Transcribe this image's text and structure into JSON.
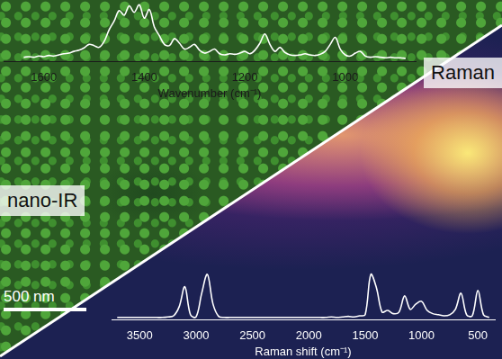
{
  "chart_data": [
    {
      "type": "line",
      "xlabel": "Wavenumber (cm⁻¹)",
      "annotations": [
        "nano-IR",
        "500 nm"
      ],
      "x": [
        1640,
        1630,
        1620,
        1610,
        1600,
        1590,
        1580,
        1570,
        1560,
        1550,
        1540,
        1530,
        1520,
        1510,
        1500,
        1490,
        1480,
        1470,
        1460,
        1450,
        1440,
        1430,
        1420,
        1410,
        1400,
        1390,
        1380,
        1370,
        1360,
        1350,
        1340,
        1330,
        1320,
        1310,
        1300,
        1290,
        1280,
        1270,
        1260,
        1250,
        1240,
        1230,
        1220,
        1210,
        1200,
        1190,
        1180,
        1170,
        1160,
        1150,
        1140,
        1130,
        1120,
        1110,
        1100,
        1090,
        1080,
        1070,
        1060,
        1050,
        1040,
        1030,
        1020,
        1010,
        1000,
        990,
        980,
        970,
        960,
        950,
        940,
        930,
        920,
        910,
        900,
        890,
        880
      ],
      "values": [
        8,
        9,
        8,
        10,
        9,
        11,
        10,
        12,
        14,
        15,
        18,
        20,
        24,
        30,
        28,
        25,
        35,
        55,
        70,
        88,
        80,
        96,
        85,
        98,
        75,
        90,
        60,
        45,
        30,
        28,
        40,
        32,
        22,
        25,
        30,
        20,
        15,
        18,
        22,
        14,
        12,
        14,
        13,
        15,
        18,
        14,
        20,
        32,
        48,
        30,
        18,
        25,
        16,
        12,
        11,
        12,
        14,
        12,
        11,
        13,
        18,
        30,
        42,
        22,
        12,
        10,
        15,
        18,
        10,
        8,
        9,
        8,
        7,
        8,
        7,
        7,
        6
      ],
      "color": "#ffffff",
      "xlim": [
        1680,
        860
      ],
      "xticks": [
        1600,
        1400,
        1200,
        1000
      ],
      "ylim": [
        0,
        100
      ],
      "tick_labels": "x",
      "grid": false
    },
    {
      "type": "line",
      "xlabel": "Raman shift (cm⁻¹)",
      "annotations": [
        "Raman"
      ],
      "x": [
        3700,
        3650,
        3600,
        3550,
        3500,
        3450,
        3400,
        3350,
        3300,
        3250,
        3200,
        3150,
        3100,
        3050,
        3000,
        2950,
        2900,
        2850,
        2800,
        2750,
        2700,
        2650,
        2600,
        2550,
        2500,
        2450,
        2400,
        2350,
        2300,
        2250,
        2200,
        2150,
        2100,
        2050,
        2000,
        1950,
        1900,
        1850,
        1800,
        1750,
        1700,
        1650,
        1600,
        1550,
        1500,
        1450,
        1400,
        1350,
        1300,
        1250,
        1200,
        1150,
        1100,
        1050,
        1000,
        950,
        900,
        850,
        800,
        750,
        700,
        650,
        600,
        550,
        500,
        450,
        400
      ],
      "values": [
        5,
        5,
        5,
        5,
        5,
        5,
        5,
        5,
        5,
        6,
        8,
        25,
        62,
        10,
        6,
        50,
        85,
        30,
        7,
        5,
        5,
        5,
        5,
        5,
        5,
        5,
        5,
        5,
        5,
        5,
        5,
        5,
        5,
        5,
        5,
        5,
        5,
        5,
        6,
        5,
        6,
        7,
        6,
        8,
        10,
        85,
        60,
        15,
        18,
        12,
        15,
        45,
        20,
        30,
        35,
        18,
        12,
        10,
        8,
        10,
        20,
        50,
        10,
        8,
        55,
        10,
        5
      ],
      "color": "#ffffff",
      "xlim": [
        3750,
        350
      ],
      "xticks": [
        3500,
        3000,
        2500,
        2000,
        1500,
        1000,
        500
      ],
      "ylim": [
        0,
        100
      ],
      "tick_labels": "x",
      "grid": false
    }
  ]
}
